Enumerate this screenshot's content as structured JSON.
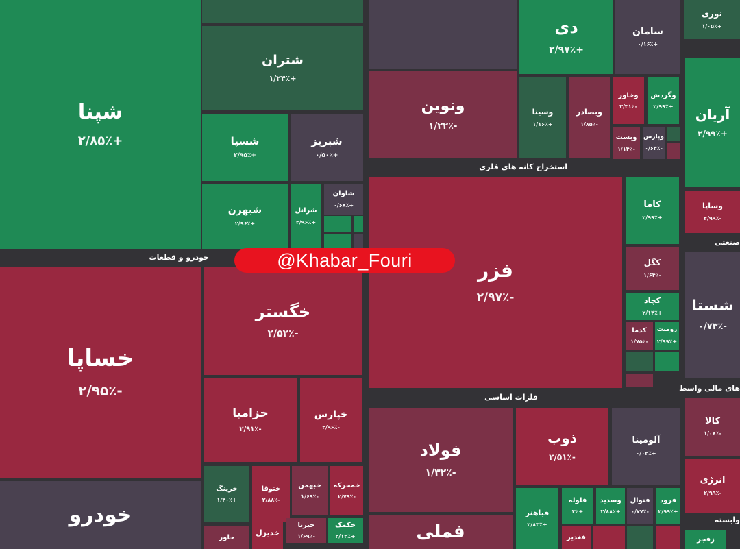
{
  "colors": {
    "green": "#1f8a55",
    "darkgreen": "#2f6048",
    "red": "#992840",
    "maroon": "#7b3147",
    "gray": "#4a4150"
  },
  "watermark": "@Khabar_Fouri",
  "sectors": [
    "خودرو و قطعات",
    "استخراج کانه های فلزی",
    "فلزات اساسی",
    "صنعتی",
    "های مالی واسط",
    "وابسته"
  ],
  "tiles": [
    {
      "name": "شپنا",
      "change": "+۲/۸۵٪",
      "color": "green"
    },
    {
      "name": "",
      "change": "",
      "color": "darkgreen"
    },
    {
      "name": "شتران",
      "change": "+۱/۲۴٪",
      "color": "darkgreen"
    },
    {
      "name": "شسپا",
      "change": "+۲/۹۵٪",
      "color": "green"
    },
    {
      "name": "شبریز",
      "change": "+۰/۵۰٪",
      "color": "gray"
    },
    {
      "name": "شبهرن",
      "change": "+۲/۹۶٪",
      "color": "green"
    },
    {
      "name": "شرانل",
      "change": "+۲/۹۶٪",
      "color": "green"
    },
    {
      "name": "شاوان",
      "change": "+۰/۶۸٪",
      "color": "gray"
    },
    {
      "name": "",
      "change": "",
      "color": "green"
    },
    {
      "name": "",
      "change": "",
      "color": "green"
    },
    {
      "name": "",
      "change": "",
      "color": "green"
    },
    {
      "name": "",
      "change": "",
      "color": "gray"
    },
    {
      "name": "خساپا",
      "change": "-۲/۹۵٪",
      "color": "red"
    },
    {
      "name": "خودرو",
      "change": "",
      "color": "gray"
    },
    {
      "name": "خگستر",
      "change": "-۲/۵۲٪",
      "color": "red"
    },
    {
      "name": "خزامیا",
      "change": "-۲/۹۱٪",
      "color": "red"
    },
    {
      "name": "خپارس",
      "change": "-۲/۹۶٪",
      "color": "red"
    },
    {
      "name": "خرینگ",
      "change": "+۱/۴۰٪",
      "color": "darkgreen"
    },
    {
      "name": "ختوقا",
      "change": "-۲/۸۸٪",
      "color": "red"
    },
    {
      "name": "خبهمن",
      "change": "-۱/۶۹٪",
      "color": "maroon"
    },
    {
      "name": "خمحرکه",
      "change": "-۲/۷۹٪",
      "color": "red"
    },
    {
      "name": "خاور",
      "change": "",
      "color": "maroon"
    },
    {
      "name": "خدیزل",
      "change": "",
      "color": "red"
    },
    {
      "name": "خبرنا",
      "change": "-۱/۶۹٪",
      "color": "maroon"
    },
    {
      "name": "خکمک",
      "change": "+۲/۱۳٪",
      "color": "green"
    },
    {
      "name": "",
      "change": "",
      "color": "gray"
    },
    {
      "name": "ونوین",
      "change": "-۱/۲۲٪",
      "color": "maroon"
    },
    {
      "name": "دی",
      "change": "+۲/۹۷٪",
      "color": "green"
    },
    {
      "name": "سامان",
      "change": "+۰/۱۶٪",
      "color": "gray"
    },
    {
      "name": "نوری",
      "change": "+۱/۰۵٪",
      "color": "darkgreen"
    },
    {
      "name": "آریان",
      "change": "+۲/۹۹٪",
      "color": "green"
    },
    {
      "name": "وسینا",
      "change": "+۱/۱۶٪",
      "color": "darkgreen"
    },
    {
      "name": "وبصادر",
      "change": "-۱/۸۵٪",
      "color": "maroon"
    },
    {
      "name": "وخاور",
      "change": "-۲/۳۱٪",
      "color": "red"
    },
    {
      "name": "وگردش",
      "change": "+۲/۹۹٪",
      "color": "green"
    },
    {
      "name": "وبست",
      "change": "-۱/۱۴٪",
      "color": "maroon"
    },
    {
      "name": "وپارس",
      "change": "-۰/۶۴٪",
      "color": "gray"
    },
    {
      "name": "",
      "change": "",
      "color": "darkgreen"
    },
    {
      "name": "",
      "change": "",
      "color": "maroon"
    },
    {
      "name": "فزر",
      "change": "-۲/۹۷٪",
      "color": "red"
    },
    {
      "name": "کاما",
      "change": "+۲/۹۹٪",
      "color": "green"
    },
    {
      "name": "کگل",
      "change": "-۱/۶۴٪",
      "color": "maroon"
    },
    {
      "name": "کچاد",
      "change": "+۲/۱۴٪",
      "color": "green"
    },
    {
      "name": "کدما",
      "change": "-۱/۷۵٪",
      "color": "maroon"
    },
    {
      "name": "رومیت",
      "change": "+۲/۹۹٪",
      "color": "green"
    },
    {
      "name": "",
      "change": "",
      "color": "darkgreen"
    },
    {
      "name": "",
      "change": "",
      "color": "green"
    },
    {
      "name": "",
      "change": "",
      "color": "maroon"
    },
    {
      "name": "وساپا",
      "change": "-۲/۹۹٪",
      "color": "red"
    },
    {
      "name": "شستا",
      "change": "-۰/۷۳٪",
      "color": "gray"
    },
    {
      "name": "فولاد",
      "change": "-۱/۳۲٪",
      "color": "maroon"
    },
    {
      "name": "فملی",
      "change": "",
      "color": "maroon"
    },
    {
      "name": "ذوب",
      "change": "-۲/۵۱٪",
      "color": "red"
    },
    {
      "name": "آلومینا",
      "change": "+۰/۰۳٪",
      "color": "gray"
    },
    {
      "name": "فباهنر",
      "change": "+۲/۸۳٪",
      "color": "green"
    },
    {
      "name": "فلوله",
      "change": "+۳٪",
      "color": "green"
    },
    {
      "name": "وسدید",
      "change": "+۲/۸۸٪",
      "color": "green"
    },
    {
      "name": "فنوال",
      "change": "-۰/۷۷٪",
      "color": "gray"
    },
    {
      "name": "فرود",
      "change": "+۲/۹۹٪",
      "color": "green"
    },
    {
      "name": "فغدیر",
      "change": "",
      "color": "red"
    },
    {
      "name": "",
      "change": "",
      "color": "red"
    },
    {
      "name": "",
      "change": "",
      "color": "darkgreen"
    },
    {
      "name": "",
      "change": "",
      "color": "red"
    },
    {
      "name": "کالا",
      "change": "-۱/۰۸٪",
      "color": "maroon"
    },
    {
      "name": "انرژی",
      "change": "-۲/۹۹٪",
      "color": "red"
    },
    {
      "name": "زفجر",
      "change": "",
      "color": "green"
    }
  ]
}
